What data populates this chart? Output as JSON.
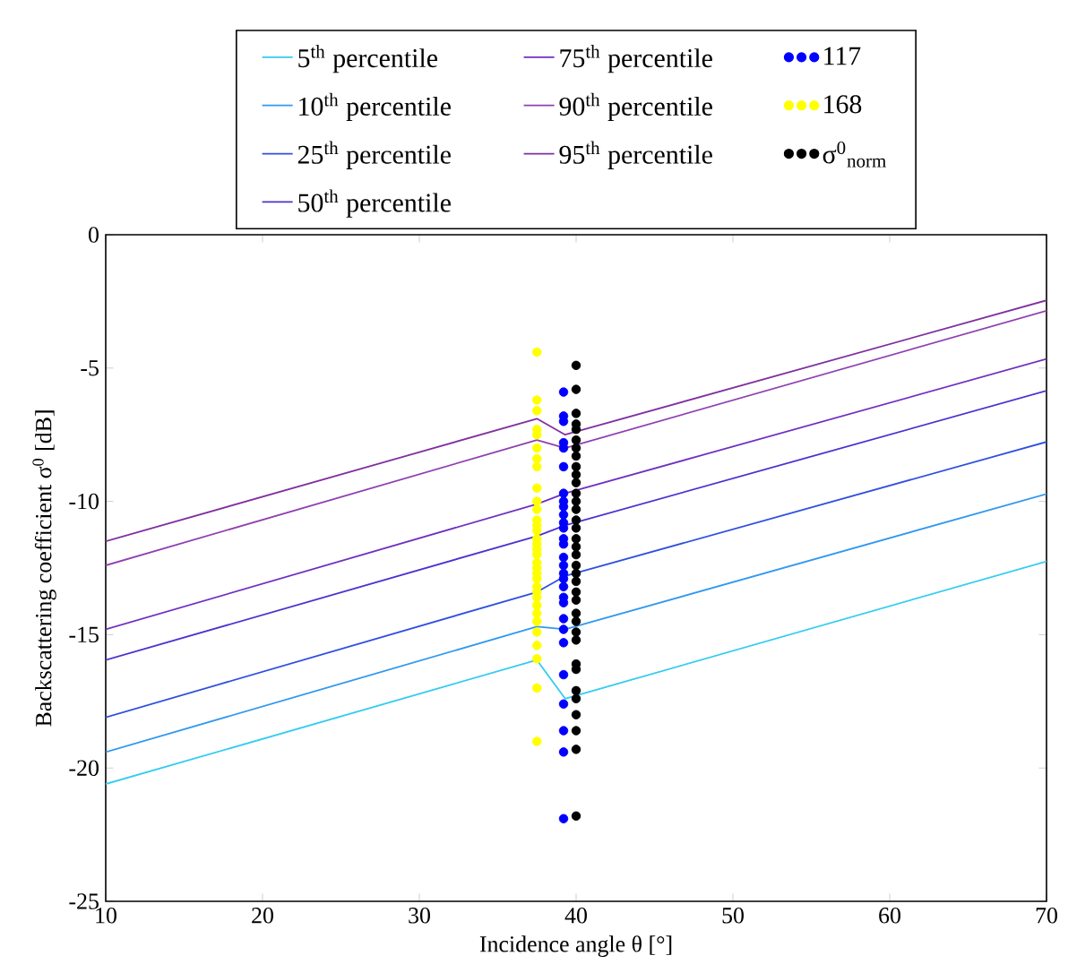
{
  "chart_data": {
    "type": "line",
    "xlabel": "Incidence angle θ [°]",
    "ylabel": "Backscattering coefficient σ$^{0}$ [dB]",
    "xlim": [
      10,
      70
    ],
    "ylim": [
      -25,
      0
    ],
    "xticks": [
      10,
      20,
      30,
      40,
      50,
      60,
      70
    ],
    "yticks": [
      -25,
      -20,
      -15,
      -10,
      -5,
      0
    ],
    "grid": false,
    "legend": "top",
    "series": [
      {
        "name": "5$^{th}$ percentile",
        "color": "#33ccf0",
        "x": [
          10,
          37.5,
          39.3,
          70
        ],
        "values": [
          -20.6,
          -15.95,
          -17.4,
          -12.25
        ]
      },
      {
        "name": "10$^{th}$ percentile",
        "color": "#3399ee",
        "x": [
          10,
          37.5,
          39.3,
          70
        ],
        "values": [
          -19.4,
          -14.7,
          -14.8,
          -9.72
        ]
      },
      {
        "name": "25$^{th}$ percentile",
        "color": "#3050e0",
        "x": [
          10,
          37.5,
          39.3,
          70
        ],
        "values": [
          -18.1,
          -13.4,
          -12.8,
          -7.77
        ]
      },
      {
        "name": "50$^{th}$ percentile",
        "color": "#5030d0",
        "x": [
          10,
          37.5,
          39.3,
          70
        ],
        "values": [
          -15.95,
          -11.3,
          -10.9,
          -5.85
        ]
      },
      {
        "name": "75$^{th}$ percentile",
        "color": "#7030c0",
        "x": [
          10,
          37.5,
          39.3,
          70
        ],
        "values": [
          -14.8,
          -10.1,
          -9.7,
          -4.66
        ]
      },
      {
        "name": "90$^{th}$ percentile",
        "color": "#9040b0",
        "x": [
          10,
          37.5,
          39.3,
          70
        ],
        "values": [
          -12.4,
          -7.7,
          -8.0,
          -2.85
        ]
      },
      {
        "name": "95$^{th}$ percentile",
        "color": "#8030a0",
        "x": [
          10,
          37.5,
          39.3,
          70
        ],
        "values": [
          -11.5,
          -6.9,
          -7.5,
          -2.46
        ]
      },
      {
        "name": "117",
        "type": "scatter",
        "marker": "circle",
        "color": "#0000ff",
        "x": [
          39.2,
          39.2,
          39.2,
          39.2,
          39.2,
          39.2,
          39.2,
          39.2,
          39.2,
          39.2,
          39.2,
          39.2,
          39.2,
          39.2,
          39.2,
          39.2,
          39.2,
          39.2,
          39.2,
          39.2,
          39.2,
          39.2,
          39.2,
          39.2,
          39.2,
          39.2,
          39.2,
          39.2,
          39.2
        ],
        "values": [
          -5.9,
          -6.8,
          -7.0,
          -7.8,
          -8.0,
          -8.7,
          -9.7,
          -10.0,
          -10.2,
          -10.5,
          -10.8,
          -11.0,
          -11.4,
          -11.6,
          -12.1,
          -12.4,
          -12.7,
          -12.9,
          -13.2,
          -13.6,
          -13.8,
          -14.4,
          -14.8,
          -15.3,
          -16.5,
          -17.6,
          -18.6,
          -19.4,
          -21.9
        ]
      },
      {
        "name": "168",
        "type": "scatter",
        "marker": "circle",
        "color": "#ffff00",
        "x": [
          37.5,
          37.5,
          37.5,
          37.5,
          37.5,
          37.5,
          37.5,
          37.5,
          37.5,
          37.5,
          37.5,
          37.5,
          37.5,
          37.5,
          37.5,
          37.5,
          37.5,
          37.5,
          37.5,
          37.5,
          37.5,
          37.5,
          37.5,
          37.5,
          37.5,
          37.5,
          37.5,
          37.5,
          37.5,
          37.5,
          37.5,
          37.5,
          37.5
        ],
        "values": [
          -4.4,
          -6.2,
          -6.6,
          -7.3,
          -7.5,
          -8.0,
          -8.4,
          -8.7,
          -9.5,
          -10.0,
          -10.3,
          -10.7,
          -10.9,
          -11.1,
          -11.4,
          -11.6,
          -11.8,
          -12.0,
          -12.3,
          -12.5,
          -12.7,
          -12.9,
          -13.2,
          -13.4,
          -13.6,
          -13.9,
          -14.2,
          -14.5,
          -14.9,
          -15.4,
          -15.9,
          -17.0,
          -19.0
        ]
      },
      {
        "name": "σ$^{0}$$_{norm}$",
        "type": "scatter",
        "marker": "circle",
        "color": "#000000",
        "x": [
          40,
          40,
          40,
          40,
          40,
          40,
          40,
          40,
          40,
          40,
          40,
          40,
          40,
          40,
          40,
          40,
          40,
          40,
          40,
          40,
          40,
          40,
          40,
          40,
          40,
          40,
          40,
          40,
          40,
          40,
          40,
          40,
          40,
          40,
          40,
          40
        ],
        "values": [
          -4.9,
          -5.8,
          -6.7,
          -7.1,
          -7.3,
          -7.7,
          -8.0,
          -8.3,
          -8.7,
          -9.0,
          -9.3,
          -9.7,
          -10.0,
          -10.3,
          -10.7,
          -11.0,
          -11.4,
          -11.7,
          -12.0,
          -12.4,
          -12.7,
          -13.0,
          -13.4,
          -13.7,
          -14.2,
          -14.5,
          -14.9,
          -15.2,
          -16.1,
          -16.3,
          -17.1,
          -17.4,
          -18.0,
          -18.6,
          -19.3,
          -21.8
        ]
      }
    ]
  }
}
